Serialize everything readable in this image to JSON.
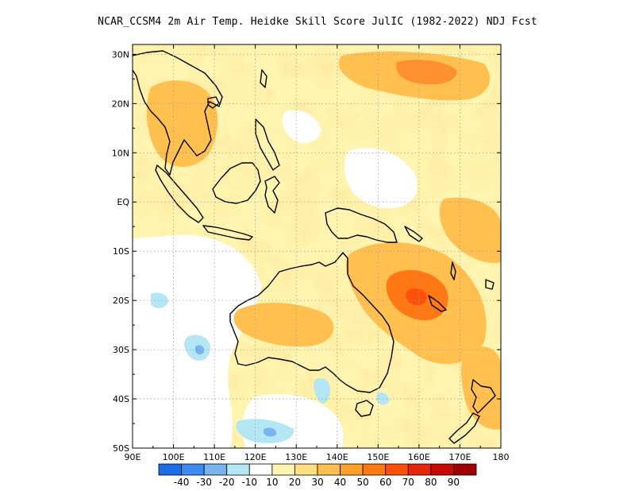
{
  "title": "NCAR_CCSM4  2m Air Temp. Heidke Skill Score JulIC (1982-2022) NDJ Fcst",
  "map": {
    "lon_range": [
      90,
      180
    ],
    "lat_range": [
      -50,
      32
    ],
    "grid": "dotted",
    "lon_ticks": [
      "90E",
      "100E",
      "110E",
      "120E",
      "130E",
      "140E",
      "150E",
      "160E",
      "170E",
      "180"
    ],
    "lat_ticks": [
      "30N",
      "20N",
      "10N",
      "EQ",
      "10S",
      "20S",
      "30S",
      "40S",
      "50S"
    ]
  },
  "colorbar": {
    "colors": [
      "#1e6ee6",
      "#3c8cf0",
      "#78b4f0",
      "#b4e6f5",
      "#ffffff",
      "#fff5b0",
      "#ffe080",
      "#ffc050",
      "#ffa028",
      "#ff7814",
      "#ff500a",
      "#e62808",
      "#c80a06",
      "#a00000"
    ],
    "labels": [
      "-40",
      "-30",
      "-20",
      "-10",
      "10",
      "20",
      "30",
      "40",
      "50",
      "60",
      "70",
      "80",
      "90"
    ]
  },
  "colors": {
    "land_outline": "#000000",
    "weak_positive": "#fff5b0",
    "moderate_positive": "#ffc050",
    "strong_positive": "#ff7814",
    "negative": "#b4e6f5"
  }
}
